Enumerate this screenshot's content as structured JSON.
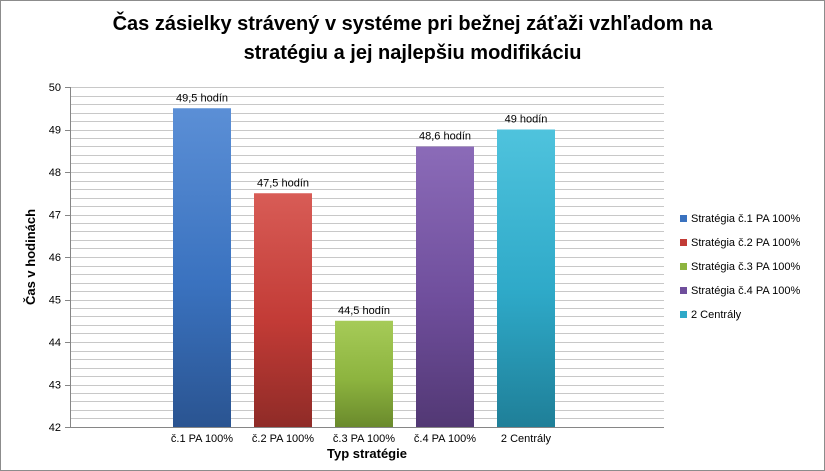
{
  "chart_data": {
    "type": "bar",
    "title_lines": [
      "Čas zásielky strávený v systéme  pri bežnej záťaži vzhľadom na",
      "stratégiu a jej najlepšiu modifikáciu"
    ],
    "xlabel": "Typ stratégie",
    "ylabel": "Čas v hodinách",
    "ylim": [
      42,
      50
    ],
    "y_major_step": 1,
    "y_minor_step": 0.2,
    "grid": true,
    "legend_position": "right",
    "categories": [
      "č.1 PA 100%",
      "č.2 PA 100%",
      "č.3 PA 100%",
      "č.4 PA 100%",
      "2 Centrály"
    ],
    "values": [
      49.5,
      47.5,
      44.5,
      48.6,
      49
    ],
    "data_labels": [
      "49,5 hodín",
      "47,5 hodín",
      "44,5 hodín",
      "48,6 hodín",
      "49 hodín"
    ],
    "legend": [
      "Stratégia č.1 PA 100%",
      "Stratégia č.2 PA 100%",
      "Stratégia č.3 PA 100%",
      "Stratégia č.4 PA 100%",
      "2 Centrály"
    ],
    "colors": [
      "#3a72bf",
      "#c23b36",
      "#8db43f",
      "#6f4e9c",
      "#2ea9c8"
    ],
    "colors_dark": [
      "#2a5491",
      "#8f2b27",
      "#6a8a2c",
      "#523874",
      "#1f7f98"
    ],
    "colors_light": [
      "#5b8fd6",
      "#d85c56",
      "#a6cb58",
      "#8b6bb8",
      "#4fc3dd"
    ]
  }
}
